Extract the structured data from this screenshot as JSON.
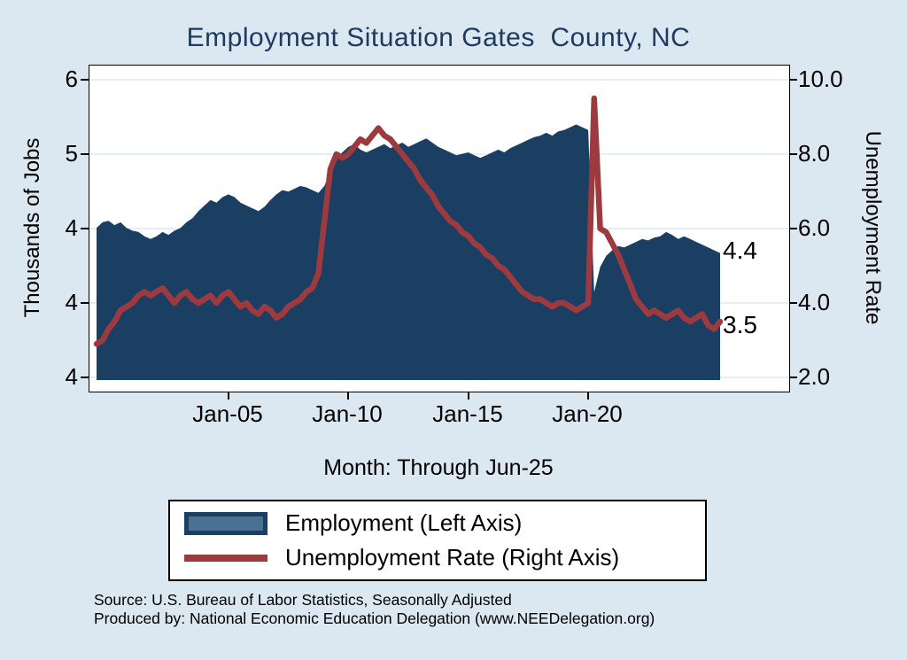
{
  "title": "Employment Situation Gates  County, NC",
  "colors": {
    "background": "#dbe7f1",
    "plot_background": "#ffffff",
    "grid": "#dfeaf3",
    "employment_fill": "#1b3f63",
    "employment_legend_fill": "#4a7093",
    "unemployment_line": "#9d3a3f",
    "title_text": "#1f3a60",
    "text": "#000000"
  },
  "annotations": {
    "employment_end": "4.4",
    "unemployment_end": "3.5"
  },
  "legend": {
    "employment_label": "Employment (Left Axis)",
    "unemployment_label": "Unemployment Rate (Right Axis)"
  },
  "source_line1": "Source: U.S. Bureau of Labor Statistics, Seasonally Adjusted",
  "source_line2": "Produced by: National Economic Education Delegation (www.NEEDelegation.org)",
  "chart_data": {
    "type": "area+line",
    "title": "Employment Situation Gates  County, NC",
    "x_label": "Month: Through Jun-25",
    "x_unit": "decimal_year",
    "grid": true,
    "legend_position": "bottom",
    "left_axis": {
      "label": "Thousands of Jobs",
      "tick_labels": [
        "6",
        "5",
        "4",
        "4",
        "4"
      ]
    },
    "right_axis": {
      "label": "Unemployment Rate",
      "range": [
        2,
        10
      ],
      "tick_labels": [
        "10.0",
        "8.0",
        "6.0",
        "4.0",
        "2.0"
      ]
    },
    "x_ticks": [
      {
        "pos": 2005,
        "label": "Jan-05"
      },
      {
        "pos": 2010,
        "label": "Jan-10"
      },
      {
        "pos": 2015,
        "label": "Jan-15"
      },
      {
        "pos": 2020,
        "label": "Jan-20"
      }
    ],
    "end_labels": {
      "employment": "4.4",
      "unemployment": "3.5"
    },
    "x": [
      1999.5,
      1999.75,
      2000,
      2000.25,
      2000.5,
      2000.75,
      2001,
      2001.25,
      2001.5,
      2001.75,
      2002,
      2002.25,
      2002.5,
      2002.75,
      2003,
      2003.25,
      2003.5,
      2003.75,
      2004,
      2004.25,
      2004.5,
      2004.75,
      2005,
      2005.25,
      2005.5,
      2005.75,
      2006,
      2006.25,
      2006.5,
      2006.75,
      2007,
      2007.25,
      2007.5,
      2007.75,
      2008,
      2008.25,
      2008.5,
      2008.75,
      2009,
      2009.25,
      2009.5,
      2009.75,
      2010,
      2010.25,
      2010.5,
      2010.75,
      2011,
      2011.25,
      2011.5,
      2011.75,
      2012,
      2012.25,
      2012.5,
      2012.75,
      2013,
      2013.25,
      2013.5,
      2013.75,
      2014,
      2014.25,
      2014.5,
      2014.75,
      2015,
      2015.25,
      2015.5,
      2015.75,
      2016,
      2016.25,
      2016.5,
      2016.75,
      2017,
      2017.25,
      2017.5,
      2017.75,
      2018,
      2018.25,
      2018.5,
      2018.75,
      2019,
      2019.25,
      2019.5,
      2019.75,
      2020,
      2020.25,
      2020.5,
      2020.75,
      2021,
      2021.25,
      2021.5,
      2021.75,
      2022,
      2022.25,
      2022.5,
      2022.75,
      2023,
      2023.25,
      2023.5,
      2023.75,
      2024,
      2024.25,
      2024.5,
      2024.75,
      2025,
      2025.25,
      2025.5
    ],
    "series": [
      {
        "name": "Employment (Left Axis)",
        "axis": "left",
        "unit": "thousands of jobs",
        "color": "#1b3f63",
        "values": [
          4.58,
          4.62,
          4.63,
          4.6,
          4.62,
          4.58,
          4.56,
          4.55,
          4.52,
          4.5,
          4.52,
          4.55,
          4.53,
          4.56,
          4.58,
          4.62,
          4.65,
          4.7,
          4.74,
          4.78,
          4.76,
          4.8,
          4.82,
          4.8,
          4.76,
          4.74,
          4.72,
          4.7,
          4.73,
          4.78,
          4.82,
          4.85,
          4.84,
          4.86,
          4.88,
          4.87,
          4.85,
          4.83,
          4.88,
          4.98,
          5.08,
          5.12,
          5.16,
          5.18,
          5.14,
          5.12,
          5.14,
          5.16,
          5.18,
          5.15,
          5.17,
          5.19,
          5.16,
          5.18,
          5.2,
          5.22,
          5.19,
          5.16,
          5.14,
          5.12,
          5.1,
          5.11,
          5.12,
          5.1,
          5.08,
          5.1,
          5.12,
          5.14,
          5.12,
          5.15,
          5.17,
          5.19,
          5.21,
          5.23,
          5.24,
          5.26,
          5.24,
          5.27,
          5.28,
          5.3,
          5.32,
          5.3,
          5.28,
          4.12,
          4.3,
          4.38,
          4.42,
          4.45,
          4.44,
          4.46,
          4.48,
          4.5,
          4.49,
          4.51,
          4.52,
          4.55,
          4.53,
          4.5,
          4.52,
          4.5,
          4.48,
          4.46,
          4.44,
          4.42,
          4.4
        ]
      },
      {
        "name": "Unemployment Rate (Right Axis)",
        "axis": "right",
        "unit": "percent",
        "color": "#9d3a3f",
        "values": [
          2.9,
          3.0,
          3.3,
          3.5,
          3.8,
          3.9,
          4.0,
          4.2,
          4.3,
          4.2,
          4.3,
          4.4,
          4.2,
          4.0,
          4.2,
          4.3,
          4.1,
          4.0,
          4.1,
          4.2,
          4.0,
          4.2,
          4.3,
          4.1,
          3.9,
          4.0,
          3.8,
          3.7,
          3.9,
          3.8,
          3.6,
          3.7,
          3.9,
          4.0,
          4.1,
          4.3,
          4.4,
          4.8,
          6.2,
          7.6,
          8.0,
          7.9,
          8.0,
          8.2,
          8.4,
          8.3,
          8.5,
          8.7,
          8.5,
          8.4,
          8.2,
          8.0,
          7.8,
          7.6,
          7.3,
          7.1,
          6.9,
          6.6,
          6.4,
          6.2,
          6.1,
          5.9,
          5.8,
          5.6,
          5.5,
          5.3,
          5.2,
          5.0,
          4.9,
          4.7,
          4.5,
          4.3,
          4.2,
          4.1,
          4.1,
          4.0,
          3.9,
          4.0,
          4.0,
          3.9,
          3.8,
          3.9,
          4.0,
          9.5,
          6.0,
          5.9,
          5.6,
          5.3,
          4.9,
          4.5,
          4.1,
          3.9,
          3.7,
          3.8,
          3.7,
          3.6,
          3.7,
          3.8,
          3.6,
          3.5,
          3.6,
          3.7,
          3.4,
          3.3,
          3.5
        ]
      }
    ]
  }
}
